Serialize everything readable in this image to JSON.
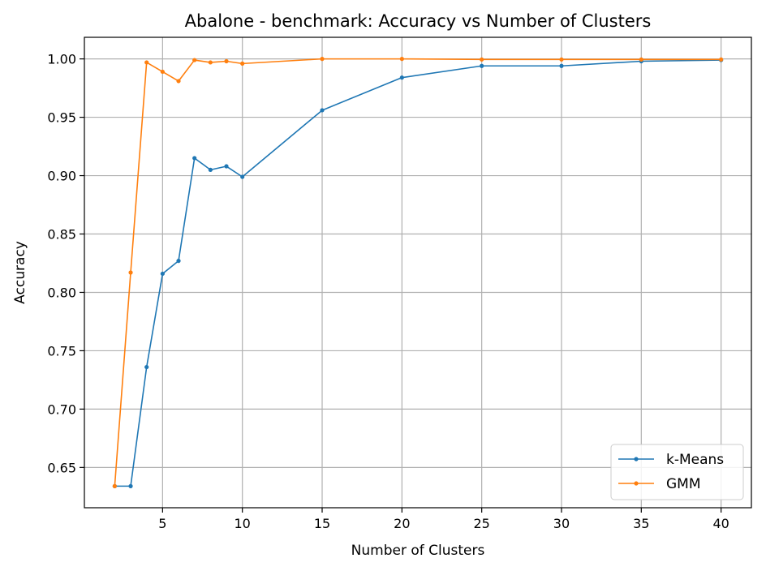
{
  "chart_data": {
    "type": "line",
    "title": "Abalone - benchmark: Accuracy vs Number of Clusters",
    "xlabel": "Number of Clusters",
    "ylabel": "Accuracy",
    "xlim": [
      0.1,
      41.9
    ],
    "ylim": [
      0.6155,
      1.0185
    ],
    "xticks": [
      5,
      10,
      15,
      20,
      25,
      30,
      35,
      40
    ],
    "xtick_labels": [
      "5",
      "10",
      "15",
      "20",
      "25",
      "30",
      "35",
      "40"
    ],
    "yticks": [
      0.65,
      0.7,
      0.75,
      0.8,
      0.85,
      0.9,
      0.95,
      1.0
    ],
    "ytick_labels": [
      "0.65",
      "0.70",
      "0.75",
      "0.80",
      "0.85",
      "0.90",
      "0.95",
      "1.00"
    ],
    "grid": true,
    "legend_position": "lower-right",
    "series": [
      {
        "name": "k-Means",
        "color": "#1f77b4",
        "x": [
          2,
          3,
          4,
          5,
          6,
          7,
          8,
          9,
          10,
          15,
          20,
          25,
          30,
          35,
          40
        ],
        "y": [
          0.634,
          0.634,
          0.736,
          0.816,
          0.827,
          0.915,
          0.905,
          0.908,
          0.899,
          0.956,
          0.984,
          0.994,
          0.994,
          0.998,
          0.999
        ]
      },
      {
        "name": "GMM",
        "color": "#ff7f0e",
        "x": [
          2,
          3,
          4,
          5,
          6,
          7,
          8,
          9,
          10,
          15,
          20,
          25,
          30,
          35,
          40
        ],
        "y": [
          0.634,
          0.817,
          0.997,
          0.989,
          0.981,
          0.999,
          0.997,
          0.998,
          0.996,
          1.0,
          1.0,
          0.9995,
          0.9995,
          0.9995,
          0.9995
        ]
      }
    ]
  }
}
